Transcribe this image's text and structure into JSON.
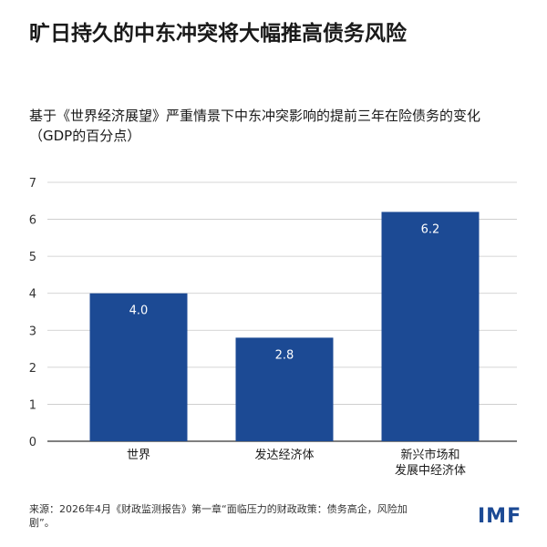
{
  "header": {
    "title": "旷日持久的中东冲突将大幅推高债务风险",
    "subtitle": "基于《世界经济展望》严重情景下中东冲突影响的提前三年在险债务的变化（GDP的百分点）"
  },
  "footer": {
    "source": "来源：2026年4月《财政监测报告》第一章“面临压力的财政政策：债务高企，风险加剧”。",
    "logo": "IMF"
  },
  "colors": {
    "bar": "#1c4a94",
    "grid": "#c8c8c8",
    "axis": "#333333",
    "logo": "#1c4a94"
  },
  "chart_data": {
    "type": "bar",
    "title": "",
    "xlabel": "",
    "ylabel": "",
    "categories": [
      [
        "世界"
      ],
      [
        "发达经济体"
      ],
      [
        "新兴市场和",
        "发展中经济体"
      ]
    ],
    "values": [
      4.0,
      2.8,
      6.2
    ],
    "value_labels": [
      "4.0",
      "2.8",
      "6.2"
    ],
    "ylim": [
      0,
      7
    ],
    "yticks": [
      0,
      1,
      2,
      3,
      4,
      5,
      6,
      7
    ],
    "grid": true,
    "legend": "none"
  }
}
